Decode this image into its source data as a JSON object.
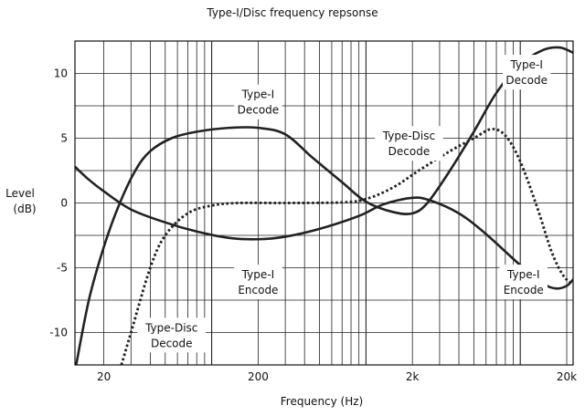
{
  "chart_data": {
    "type": "line",
    "title": "Type-I/Disc frequency repsonse",
    "xlabel": "Frequency (Hz)",
    "ylabel": [
      "Level",
      "(dB)"
    ],
    "xscale": "log",
    "xlim": [
      13,
      22000
    ],
    "ylim": [
      -12.5,
      12.5
    ],
    "x_tick_labels": [
      {
        "value": 20,
        "label": "20"
      },
      {
        "value": 200,
        "label": "200"
      },
      {
        "value": 2000,
        "label": "2k"
      },
      {
        "value": 20000,
        "label": "20k"
      }
    ],
    "y_tick_labels": [
      {
        "value": 10,
        "label": "10"
      },
      {
        "value": 5,
        "label": "5"
      },
      {
        "value": 0,
        "label": "0"
      },
      {
        "value": -5,
        "label": "-5"
      },
      {
        "value": -10,
        "label": "-10"
      }
    ],
    "grid": true,
    "legend": "none",
    "series": [
      {
        "dash": "solid",
        "points": [
          [
            13,
            -13
          ],
          [
            16,
            -7.5
          ],
          [
            20,
            -3.4
          ],
          [
            25,
            -0.2
          ],
          [
            32,
            2.5
          ],
          [
            40,
            4
          ],
          [
            55,
            5
          ],
          [
            80,
            5.5
          ],
          [
            130,
            5.8
          ],
          [
            200,
            5.8
          ],
          [
            300,
            5.3
          ],
          [
            450,
            3.5
          ],
          [
            700,
            1.6
          ],
          [
            1000,
            0.1
          ],
          [
            1500,
            -0.7
          ],
          [
            2000,
            -0.8
          ],
          [
            2500,
            0
          ],
          [
            3500,
            2.5
          ],
          [
            5000,
            5.5
          ],
          [
            7000,
            8.5
          ],
          [
            10000,
            10.7
          ],
          [
            14000,
            11.8
          ],
          [
            18000,
            12
          ],
          [
            22000,
            11.6
          ]
        ]
      },
      {
        "dash": "solid",
        "points": [
          [
            13,
            2.8
          ],
          [
            16,
            1.8
          ],
          [
            20,
            0.9
          ],
          [
            30,
            -0.5
          ],
          [
            50,
            -1.5
          ],
          [
            80,
            -2.2
          ],
          [
            130,
            -2.7
          ],
          [
            200,
            -2.8
          ],
          [
            300,
            -2.6
          ],
          [
            500,
            -2
          ],
          [
            900,
            -1
          ],
          [
            1300,
            -0.1
          ],
          [
            2000,
            0.4
          ],
          [
            2600,
            0.2
          ],
          [
            4000,
            -0.8
          ],
          [
            6000,
            -2.4
          ],
          [
            10000,
            -4.8
          ],
          [
            14000,
            -6.2
          ],
          [
            17000,
            -6.6
          ],
          [
            20000,
            -6.4
          ],
          [
            22000,
            -5.9
          ]
        ]
      },
      {
        "dash": "dotted",
        "points": [
          [
            26,
            -12.5
          ],
          [
            30,
            -10
          ],
          [
            40,
            -5
          ],
          [
            50,
            -2.5
          ],
          [
            70,
            -0.8
          ],
          [
            100,
            -0.2
          ],
          [
            150,
            0
          ],
          [
            300,
            0
          ],
          [
            700,
            0.05
          ],
          [
            1000,
            0.3
          ],
          [
            1500,
            1.2
          ],
          [
            2200,
            2.5
          ],
          [
            3500,
            4
          ],
          [
            5000,
            5
          ],
          [
            6500,
            5.7
          ],
          [
            8000,
            5.2
          ],
          [
            10000,
            3.2
          ],
          [
            13000,
            -0.5
          ],
          [
            16000,
            -3.8
          ],
          [
            19000,
            -5.6
          ],
          [
            22000,
            -6.3
          ]
        ]
      }
    ],
    "annotations": [
      {
        "id": "type-i-decode-mid",
        "lines": [
          "Type-I",
          "Decode"
        ],
        "x": 200,
        "y": 7.8
      },
      {
        "id": "type-disc-decode-mid",
        "lines": [
          "Type-Disc",
          "Decode"
        ],
        "x": 1900,
        "y": 4.6
      },
      {
        "id": "type-i-decode-right",
        "lines": [
          "Type-I",
          "Decode"
        ],
        "x": 11000,
        "y": 10.1
      },
      {
        "id": "type-i-encode-mid",
        "lines": [
          "Type-I",
          "Encode"
        ],
        "x": 200,
        "y": -6.1
      },
      {
        "id": "type-i-encode-right",
        "lines": [
          "Type-I",
          "Encode"
        ],
        "x": 10500,
        "y": -6.1
      },
      {
        "id": "type-disc-decode-left",
        "lines": [
          "Type-Disc",
          "Decode"
        ],
        "x": 55,
        "y": -10.2
      }
    ]
  }
}
